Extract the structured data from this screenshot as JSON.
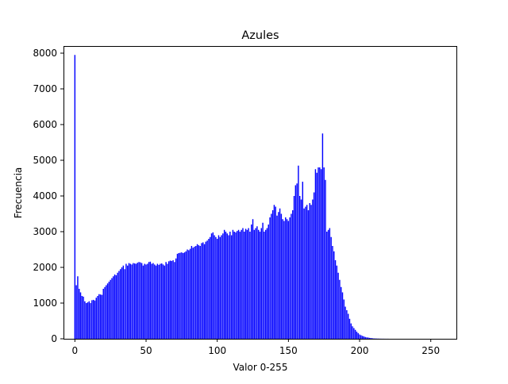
{
  "chart_data": {
    "type": "bar",
    "title": "Azules",
    "xlabel": "Valor 0-255",
    "ylabel": "Frecuencia",
    "xlim": [
      -8,
      268
    ],
    "ylim": [
      0,
      8200
    ],
    "xticks": [
      0,
      50,
      100,
      150,
      200,
      250
    ],
    "yticks": [
      0,
      1000,
      2000,
      3000,
      4000,
      5000,
      6000,
      7000,
      8000
    ],
    "bar_color": "#0000ff",
    "grid": false,
    "x_start": 0,
    "values": [
      7950,
      1500,
      1750,
      1400,
      1300,
      1200,
      1180,
      1050,
      1000,
      1020,
      1050,
      1000,
      1080,
      1090,
      1070,
      1150,
      1200,
      1250,
      1240,
      1230,
      1400,
      1450,
      1500,
      1550,
      1600,
      1650,
      1700,
      1750,
      1800,
      1780,
      1850,
      1900,
      1950,
      2000,
      2050,
      1950,
      2100,
      2050,
      2120,
      2100,
      2080,
      2120,
      2110,
      2100,
      2130,
      2150,
      2140,
      2120,
      2050,
      2100,
      2080,
      2100,
      2150,
      2160,
      2100,
      2120,
      2080,
      2050,
      2100,
      2070,
      2100,
      2110,
      2080,
      2050,
      2150,
      2100,
      2170,
      2190,
      2180,
      2200,
      2150,
      2250,
      2380,
      2400,
      2410,
      2420,
      2400,
      2420,
      2450,
      2500,
      2480,
      2520,
      2600,
      2550,
      2580,
      2600,
      2650,
      2620,
      2600,
      2680,
      2700,
      2650,
      2720,
      2750,
      2800,
      2850,
      2950,
      2980,
      2900,
      2850,
      2800,
      2900,
      2850,
      2900,
      2950,
      3050,
      3000,
      2950,
      2900,
      3000,
      2900,
      3050,
      3000,
      2980,
      3020,
      3050,
      3000,
      3050,
      3100,
      3000,
      3080,
      3050,
      3100,
      3000,
      3200,
      3350,
      3050,
      3100,
      3150,
      3050,
      3000,
      3100,
      3250,
      3000,
      3050,
      3100,
      3200,
      3400,
      3500,
      3600,
      3750,
      3700,
      3450,
      3550,
      3650,
      3500,
      3350,
      3300,
      3400,
      3350,
      3300,
      3400,
      3500,
      3600,
      4000,
      4300,
      4350,
      4850,
      4000,
      3900,
      4400,
      3650,
      3700,
      3750,
      3600,
      3800,
      3750,
      3900,
      4100,
      4750,
      4650,
      4800,
      4800,
      4750,
      5750,
      4800,
      4450,
      3000,
      3050,
      3100,
      2850,
      2600,
      2450,
      2200,
      2050,
      1850,
      1650,
      1450,
      1300,
      1100,
      900,
      800,
      700,
      560,
      430,
      350,
      300,
      250,
      200,
      160,
      120,
      100,
      80,
      65,
      50,
      40,
      35,
      25,
      20,
      15,
      10,
      8,
      6,
      5,
      4,
      3,
      2,
      2,
      1,
      1,
      1,
      0,
      0,
      0,
      0,
      0,
      0,
      0,
      0,
      0,
      0,
      0,
      0,
      0,
      0,
      0,
      0,
      0,
      0,
      0,
      0,
      0,
      0,
      0,
      0,
      0,
      0,
      0,
      0,
      0,
      0,
      0,
      0,
      0,
      0,
      0,
      0,
      0,
      0,
      0,
      0,
      0,
      0,
      0,
      0,
      0,
      0
    ]
  }
}
